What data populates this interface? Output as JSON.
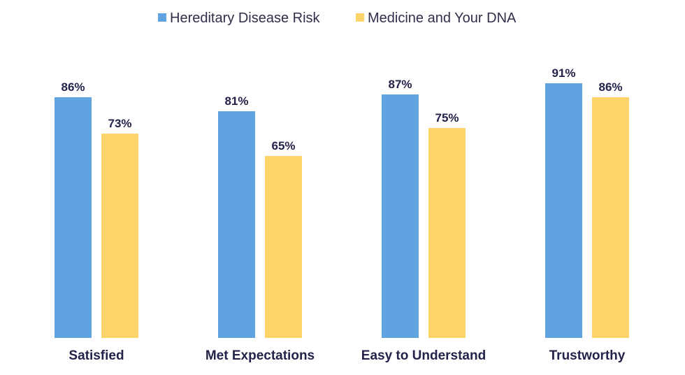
{
  "chart_data": {
    "type": "bar",
    "categories": [
      "Satisfied",
      "Met Expectations",
      "Easy to Understand",
      "Trustworthy"
    ],
    "series": [
      {
        "name": "Hereditary Disease Risk",
        "color": "#5fa3e0",
        "values": [
          86,
          81,
          87,
          91
        ],
        "labels": [
          "86%",
          "81%",
          "87%",
          "91%"
        ]
      },
      {
        "name": "Medicine and Your DNA",
        "color": "#fdd46a",
        "values": [
          73,
          65,
          75,
          86
        ],
        "labels": [
          "73%",
          "65%",
          "75%",
          "86%"
        ]
      }
    ],
    "unit": "%",
    "ylim": [
      0,
      100
    ],
    "grid": false,
    "legend_position": "top-center",
    "title": "",
    "xlabel": "",
    "ylabel": ""
  }
}
